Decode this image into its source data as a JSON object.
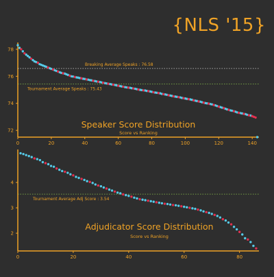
{
  "brand_title": "{NLS '15}",
  "colors": {
    "background": "#2e2e2e",
    "axis": "#f0a326",
    "text": "#f0a326",
    "point_primary": "#56c9e6",
    "point_highlight": "#e0304f",
    "reference_breaking": "#cfcfcf",
    "reference_tournament": "#8bc34a"
  },
  "chart_data": [
    {
      "type": "scatter",
      "title": "Speaker Score Distribution",
      "subtitle": "Score vs Ranking",
      "xlabel": "",
      "ylabel": "",
      "xlim": [
        0,
        144
      ],
      "ylim": [
        71.5,
        78.5
      ],
      "xticks": [
        0,
        20,
        40,
        60,
        80,
        100,
        120,
        140
      ],
      "yticks": [
        72,
        74,
        76,
        78
      ],
      "grid": false,
      "reference_lines": [
        {
          "label": "Breaking Average Speaks : 76.58",
          "value": 76.58,
          "style": "dotted",
          "color_key": "reference_breaking"
        },
        {
          "label": "Tournament Average Speaks : 75.43",
          "value": 75.43,
          "style": "dotted",
          "color_key": "reference_tournament"
        }
      ],
      "series": [
        {
          "color_key": "point_primary",
          "x": [
            0,
            1,
            3,
            5,
            6,
            7,
            9,
            10,
            11,
            13,
            14,
            15,
            16,
            17,
            19,
            20,
            22,
            23,
            25,
            26,
            28,
            29,
            30,
            32,
            33,
            35,
            36,
            37,
            39,
            40,
            42,
            43,
            44,
            46,
            47,
            49,
            50,
            52,
            53,
            55,
            56,
            58,
            59,
            61,
            62,
            64,
            65,
            67,
            68,
            70,
            71,
            73,
            74,
            76,
            77,
            79,
            80,
            82,
            83,
            85,
            86,
            88,
            89,
            91,
            92,
            94,
            95,
            97,
            98,
            100,
            101,
            103,
            104,
            106,
            107,
            109,
            110,
            112,
            113,
            115,
            116,
            118,
            119,
            121,
            122,
            124,
            125,
            127,
            128,
            130,
            131,
            133,
            134,
            136,
            137,
            139,
            143
          ],
          "y": [
            78.3,
            78.1,
            77.85,
            77.6,
            77.5,
            77.4,
            77.2,
            77.1,
            77.05,
            76.9,
            76.85,
            76.8,
            76.75,
            76.7,
            76.6,
            76.55,
            76.45,
            76.4,
            76.3,
            76.25,
            76.2,
            76.15,
            76.1,
            76.0,
            75.98,
            75.92,
            75.9,
            75.87,
            75.82,
            75.8,
            75.75,
            75.72,
            75.7,
            75.65,
            75.62,
            75.58,
            75.55,
            75.5,
            75.47,
            75.43,
            75.4,
            75.36,
            75.33,
            75.28,
            75.25,
            75.2,
            75.18,
            75.15,
            75.12,
            75.08,
            75.05,
            75.0,
            74.98,
            74.95,
            74.92,
            74.88,
            74.85,
            74.8,
            74.78,
            74.74,
            74.7,
            74.66,
            74.63,
            74.58,
            74.55,
            74.5,
            74.48,
            74.44,
            74.4,
            74.36,
            74.33,
            74.29,
            74.26,
            74.2,
            74.17,
            74.12,
            74.08,
            74.02,
            74.0,
            73.95,
            73.92,
            73.85,
            73.8,
            73.72,
            73.68,
            73.6,
            73.55,
            73.48,
            73.45,
            73.38,
            73.33,
            73.28,
            73.25,
            73.2,
            73.15,
            73.1,
            71.5
          ]
        },
        {
          "color_key": "point_highlight",
          "x": [
            2,
            4,
            8,
            12,
            18,
            21,
            24,
            27,
            31,
            34,
            38,
            41,
            45,
            48,
            51,
            54,
            57,
            60,
            63,
            66,
            69,
            72,
            75,
            78,
            81,
            84,
            87,
            90,
            93,
            96,
            99,
            102,
            105,
            108,
            111,
            114,
            117,
            120,
            123,
            126,
            129,
            132,
            135,
            138,
            140,
            141,
            142
          ],
          "y": [
            78.0,
            77.7,
            77.3,
            77.0,
            76.65,
            76.5,
            76.35,
            76.22,
            76.05,
            75.95,
            75.85,
            75.77,
            75.67,
            75.6,
            75.52,
            75.45,
            75.38,
            75.3,
            75.23,
            75.16,
            75.1,
            75.02,
            74.96,
            74.9,
            74.82,
            74.76,
            74.68,
            74.6,
            74.52,
            74.46,
            74.38,
            74.31,
            74.22,
            74.14,
            74.05,
            73.98,
            73.88,
            73.76,
            73.65,
            73.52,
            73.42,
            73.3,
            73.22,
            73.12,
            73.05,
            73.0,
            72.95
          ]
        }
      ]
    },
    {
      "type": "scatter",
      "title": "Adjudicator Score Distribution",
      "subtitle": "Score vs Ranking",
      "xlabel": "",
      "ylabel": "",
      "xlim": [
        0,
        87
      ],
      "ylim": [
        1.3,
        5.3
      ],
      "xticks": [
        0,
        20,
        40,
        60,
        80
      ],
      "yticks": [
        2,
        3,
        4
      ],
      "grid": false,
      "reference_lines": [
        {
          "label": "Tournament Average Adj Score : 3.54",
          "value": 3.54,
          "style": "dotted",
          "color_key": "reference_tournament"
        }
      ],
      "series": [
        {
          "color_key": "point_primary",
          "x": [
            1,
            2,
            3,
            4,
            5,
            7,
            8,
            9,
            11,
            12,
            13,
            15,
            16,
            18,
            19,
            21,
            22,
            24,
            25,
            27,
            28,
            30,
            31,
            33,
            34,
            36,
            37,
            39,
            40,
            42,
            43,
            45,
            46,
            48,
            49,
            51,
            52,
            54,
            55,
            57,
            58,
            60,
            61,
            63,
            64,
            66,
            67,
            69,
            70,
            72,
            73,
            75,
            76,
            78,
            79,
            81,
            82,
            84,
            85
          ],
          "y": [
            5.15,
            5.12,
            5.08,
            5.04,
            5.0,
            4.92,
            4.88,
            4.8,
            4.72,
            4.65,
            4.62,
            4.5,
            4.45,
            4.38,
            4.32,
            4.22,
            4.18,
            4.1,
            4.05,
            3.98,
            3.92,
            3.85,
            3.8,
            3.72,
            3.68,
            3.6,
            3.57,
            3.5,
            3.47,
            3.4,
            3.37,
            3.32,
            3.3,
            3.26,
            3.24,
            3.2,
            3.18,
            3.15,
            3.13,
            3.1,
            3.08,
            3.04,
            3.02,
            2.98,
            2.96,
            2.9,
            2.86,
            2.8,
            2.76,
            2.68,
            2.62,
            2.5,
            2.42,
            2.25,
            2.15,
            1.95,
            1.8,
            1.65,
            1.5
          ]
        },
        {
          "color_key": "point_highlight",
          "x": [
            6,
            10,
            14,
            17,
            20,
            23,
            26,
            29,
            32,
            35,
            38,
            41,
            44,
            47,
            50,
            53,
            56,
            59,
            62,
            65,
            68,
            71,
            74,
            77,
            80,
            83,
            86
          ],
          "y": [
            4.95,
            4.76,
            4.55,
            4.42,
            4.28,
            4.14,
            4.02,
            3.88,
            3.76,
            3.64,
            3.53,
            3.44,
            3.34,
            3.28,
            3.22,
            3.16,
            3.11,
            3.06,
            3.0,
            2.93,
            2.83,
            2.72,
            2.55,
            2.35,
            2.05,
            1.75,
            1.4
          ]
        }
      ]
    }
  ]
}
